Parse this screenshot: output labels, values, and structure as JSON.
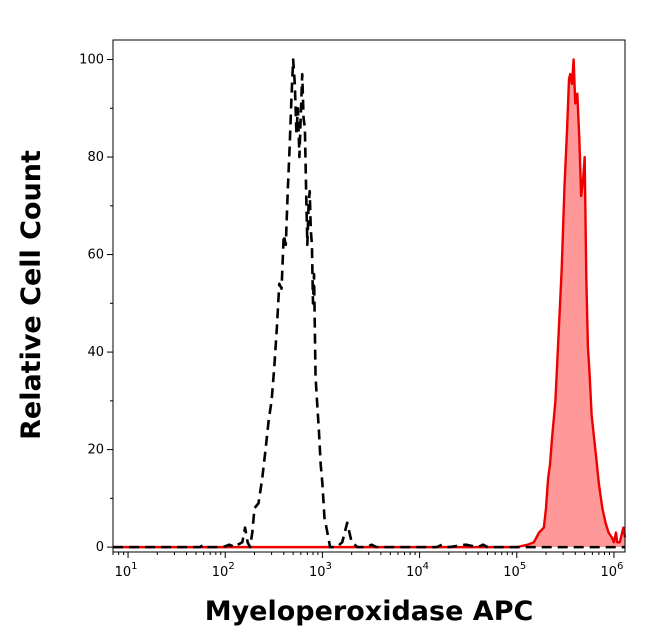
{
  "chart_data": {
    "type": "area",
    "title": "",
    "xlabel": "Myeloperoxidase APC",
    "ylabel": "Relative Cell Count",
    "x_scale": "log",
    "xlim": [
      7,
      1300000
    ],
    "ylim": [
      -1,
      104
    ],
    "grid": false,
    "x_ticks": [
      {
        "base": "10",
        "exp": "1",
        "value": 10
      },
      {
        "base": "10",
        "exp": "2",
        "value": 100
      },
      {
        "base": "10",
        "exp": "3",
        "value": 1000
      },
      {
        "base": "10",
        "exp": "4",
        "value": 10000
      },
      {
        "base": "10",
        "exp": "5",
        "value": 100000
      },
      {
        "base": "10",
        "exp": "6",
        "value": 1000000
      }
    ],
    "y_ticks": [
      "0",
      "20",
      "40",
      "60",
      "80",
      "100"
    ],
    "series": [
      {
        "name": "",
        "style": "dashed",
        "color": "#000000",
        "fill": "none",
        "x": [
          7,
          40,
          55,
          60,
          65,
          75,
          95,
          110,
          125,
          135,
          150,
          160,
          170,
          180,
          190,
          200,
          220,
          240,
          260,
          280,
          300,
          320,
          340,
          360,
          380,
          400,
          420,
          440,
          460,
          480,
          500,
          520,
          540,
          560,
          580,
          600,
          620,
          640,
          660,
          680,
          700,
          720,
          740,
          760,
          780,
          800,
          820,
          850,
          880,
          920,
          960,
          1000,
          1050,
          1100,
          1150,
          1200,
          1300,
          1400,
          1600,
          1800,
          2000,
          2300,
          2600,
          2900,
          3200,
          3600,
          4000,
          6000,
          10000,
          15000,
          17000,
          20000,
          30000,
          40000,
          45000,
          50000,
          100000,
          1300000
        ],
        "y": [
          0,
          0,
          0,
          0.5,
          0,
          0,
          0,
          0.5,
          0,
          0.5,
          1,
          4,
          1,
          0,
          3,
          8,
          9,
          14,
          20,
          26,
          30,
          37,
          45,
          54,
          53,
          64,
          62,
          73,
          82,
          92,
          100,
          95,
          85,
          90,
          80,
          89,
          97,
          88,
          86,
          73,
          62,
          70,
          73,
          65,
          62,
          50,
          56,
          35,
          30,
          24,
          17,
          13,
          6,
          4,
          2,
          0,
          0,
          0,
          1,
          5,
          1,
          0,
          0,
          0,
          0.5,
          0,
          0,
          0,
          0,
          0,
          0.5,
          0,
          0.5,
          0,
          0.5,
          0,
          0,
          0
        ]
      },
      {
        "name": "",
        "style": "solid",
        "color": "#ee0000",
        "fill": "#ff9999",
        "x": [
          7,
          50000,
          100000,
          130000,
          150000,
          170000,
          190000,
          200000,
          210000,
          220000,
          230000,
          250000,
          270000,
          290000,
          310000,
          330000,
          345000,
          355000,
          370000,
          385000,
          400000,
          420000,
          440000,
          460000,
          480000,
          500000,
          520000,
          540000,
          560000,
          590000,
          620000,
          660000,
          700000,
          760000,
          820000,
          880000,
          950000,
          1000000,
          1050000,
          1080000,
          1150000,
          1250000,
          1300000
        ],
        "y": [
          0,
          0,
          0,
          0.5,
          1,
          3,
          4,
          8,
          14,
          17,
          22,
          30,
          44,
          57,
          74,
          86,
          96,
          97,
          95,
          100,
          91,
          93,
          84,
          72,
          75,
          80,
          55,
          41,
          36,
          27,
          23,
          18,
          13,
          8,
          5,
          3,
          2,
          1,
          3,
          1,
          1,
          4,
          2
        ]
      }
    ]
  }
}
